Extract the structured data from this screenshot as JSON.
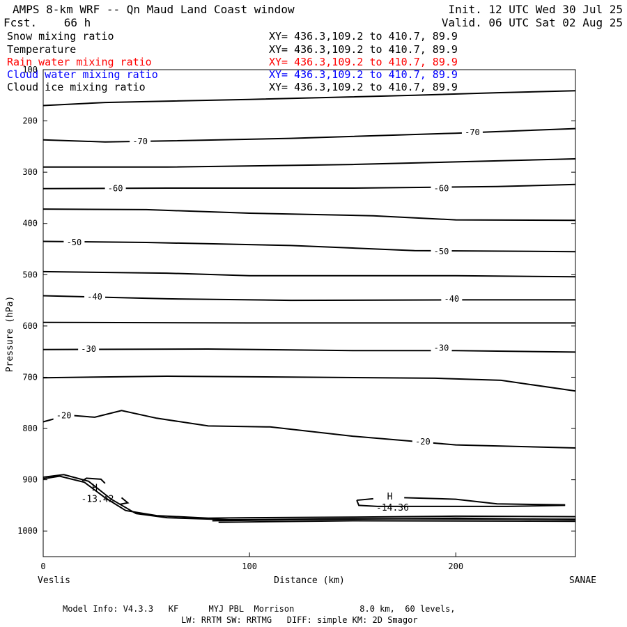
{
  "header": {
    "title": "AMPS 8-km WRF -- Qn Maud Land Coast window",
    "fcst": "Fcst.    66 h",
    "init": "Init. 12 UTC Wed 30 Jul 25",
    "valid": "Valid. 06 UTC Sat 02 Aug 25"
  },
  "fields": [
    {
      "name": "Snow mixing ratio",
      "xy": "XY= 436.3,109.2 to 410.7, 89.9",
      "color": "#000000"
    },
    {
      "name": "Temperature",
      "xy": "XY= 436.3,109.2 to 410.7, 89.9",
      "color": "#000000"
    },
    {
      "name": "Rain water mixing ratio",
      "xy": "XY= 436.3,109.2 to 410.7, 89.9",
      "color": "#ff0000"
    },
    {
      "name": "Cloud water mixing ratio",
      "xy": "XY= 436.3,109.2 to 410.7, 89.9",
      "color": "#0000ff"
    },
    {
      "name": "Cloud ice mixing ratio",
      "xy": "XY= 436.3,109.2 to 410.7, 89.9",
      "color": "#000000"
    }
  ],
  "footer": {
    "line1": "Model Info: V4.3.3   KF      MYJ PBL  Morrison             8.0 km,  60 levels,",
    "line2": "LW: RRTM SW: RRTMG   DIFF: simple KM: 2D Smagor"
  },
  "chart_data": {
    "type": "contour",
    "xlabel": "Distance (km)",
    "ylabel": "Pressure (hPa)",
    "xlim": [
      0,
      258
    ],
    "ylim": [
      1050,
      100
    ],
    "xticks": [
      0,
      100,
      200
    ],
    "yticks": [
      100,
      200,
      300,
      400,
      500,
      600,
      700,
      800,
      900,
      1000
    ],
    "x_endpoints": {
      "left": "Veslis",
      "right": "SANAE"
    },
    "contours": [
      {
        "points": [
          [
            0,
            170
          ],
          [
            30,
            164
          ],
          [
            100,
            158
          ],
          [
            180,
            150
          ],
          [
            220,
            145
          ],
          [
            258,
            141
          ]
        ]
      },
      {
        "label": "-70",
        "label_at": [
          [
            47,
            240
          ],
          [
            208,
            222
          ]
        ],
        "points": [
          [
            0,
            237
          ],
          [
            30,
            241
          ],
          [
            60,
            239
          ],
          [
            120,
            234
          ],
          [
            200,
            224
          ],
          [
            258,
            215
          ]
        ]
      },
      {
        "points": [
          [
            0,
            290
          ],
          [
            60,
            290
          ],
          [
            150,
            285
          ],
          [
            200,
            280
          ],
          [
            258,
            274
          ]
        ]
      },
      {
        "label": "-60",
        "label_at": [
          [
            35,
            332
          ],
          [
            193,
            332
          ]
        ],
        "points": [
          [
            0,
            332
          ],
          [
            60,
            331
          ],
          [
            150,
            331
          ],
          [
            220,
            328
          ],
          [
            258,
            324
          ]
        ]
      },
      {
        "points": [
          [
            0,
            372
          ],
          [
            50,
            373
          ],
          [
            100,
            380
          ],
          [
            160,
            385
          ],
          [
            200,
            393
          ],
          [
            258,
            394
          ]
        ]
      },
      {
        "label": "-50",
        "label_at": [
          [
            15,
            437
          ],
          [
            193,
            455
          ]
        ],
        "points": [
          [
            0,
            435
          ],
          [
            50,
            437
          ],
          [
            120,
            443
          ],
          [
            180,
            453
          ],
          [
            258,
            455
          ]
        ]
      },
      {
        "points": [
          [
            0,
            494
          ],
          [
            60,
            497
          ],
          [
            100,
            502
          ],
          [
            200,
            502
          ],
          [
            258,
            504
          ]
        ]
      },
      {
        "label": "-40",
        "label_at": [
          [
            25,
            543
          ],
          [
            198,
            547
          ]
        ],
        "points": [
          [
            0,
            541
          ],
          [
            60,
            547
          ],
          [
            120,
            550
          ],
          [
            200,
            549
          ],
          [
            258,
            549
          ]
        ]
      },
      {
        "points": [
          [
            0,
            593
          ],
          [
            100,
            594
          ],
          [
            200,
            594
          ],
          [
            258,
            594
          ]
        ]
      },
      {
        "label": "-30",
        "label_at": [
          [
            22,
            645
          ],
          [
            193,
            643
          ]
        ],
        "points": [
          [
            0,
            646
          ],
          [
            80,
            645
          ],
          [
            150,
            648
          ],
          [
            200,
            648
          ],
          [
            258,
            651
          ]
        ]
      },
      {
        "points": [
          [
            0,
            701
          ],
          [
            60,
            698
          ],
          [
            130,
            700
          ],
          [
            190,
            702
          ],
          [
            222,
            706
          ],
          [
            258,
            727
          ]
        ]
      },
      {
        "label": "-20",
        "label_at": [
          [
            10,
            775
          ],
          [
            184,
            826
          ]
        ],
        "points": [
          [
            0,
            787
          ],
          [
            12,
            774
          ],
          [
            25,
            778
          ],
          [
            38,
            765
          ],
          [
            55,
            780
          ],
          [
            80,
            795
          ],
          [
            110,
            797
          ],
          [
            150,
            815
          ],
          [
            200,
            832
          ],
          [
            258,
            838
          ]
        ]
      }
    ],
    "annotations": [
      {
        "text": "H",
        "value": "-13.42",
        "x": 25,
        "p": 935
      },
      {
        "text": "H",
        "value": "-14.36",
        "x": 168,
        "p": 952
      }
    ]
  }
}
